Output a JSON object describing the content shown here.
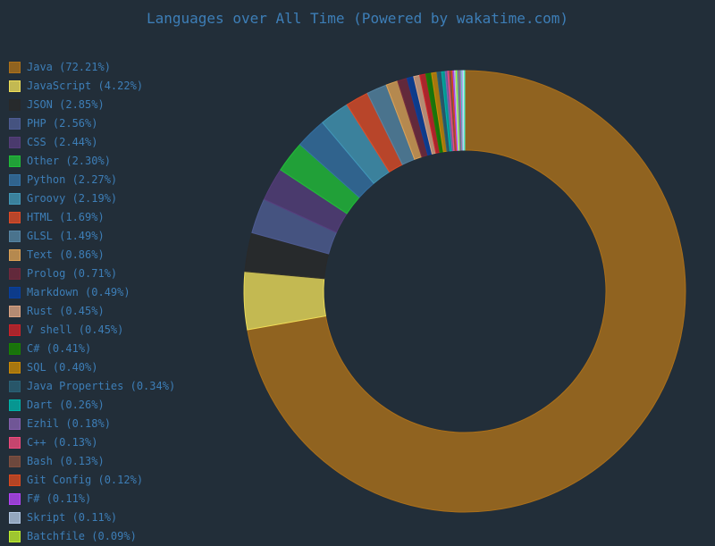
{
  "title": "Languages over All Time (Powered by wakatime.com)",
  "colors": {
    "background": "#222e39",
    "text": "#3d7eb7"
  },
  "chart_data": {
    "type": "pie",
    "donut": true,
    "start_angle_deg": 0,
    "direction": "clockwise",
    "start_position": "top",
    "legend_position": "left",
    "center": {
      "x": 520,
      "y": 326
    },
    "outer_radius": 247,
    "inner_radius": 158,
    "fill_opacity": 0.78,
    "series": [
      {
        "name": "Java",
        "label": "Java (72.21%)",
        "value": 72.21,
        "color": "#b07219"
      },
      {
        "name": "JavaScript",
        "label": "JavaScript (4.22%)",
        "value": 4.22,
        "color": "#f1e05a"
      },
      {
        "name": "JSON",
        "label": "JSON (2.85%)",
        "value": 2.85,
        "color": "#292929"
      },
      {
        "name": "PHP",
        "label": "PHP (2.56%)",
        "value": 2.56,
        "color": "#4F5D95"
      },
      {
        "name": "CSS",
        "label": "CSS (2.44%)",
        "value": 2.44,
        "color": "#563d7c"
      },
      {
        "name": "Other",
        "label": "Other (2.30%)",
        "value": 2.3,
        "color": "#21c038"
      },
      {
        "name": "Python",
        "label": "Python (2.27%)",
        "value": 2.27,
        "color": "#3572A5"
      },
      {
        "name": "Groovy",
        "label": "Groovy (2.19%)",
        "value": 2.19,
        "color": "#4298b8"
      },
      {
        "name": "HTML",
        "label": "HTML (1.69%)",
        "value": 1.69,
        "color": "#e34c26"
      },
      {
        "name": "GLSL",
        "label": "GLSL (1.49%)",
        "value": 1.49,
        "color": "#5686a5"
      },
      {
        "name": "Text",
        "label": "Text (0.86%)",
        "value": 0.86,
        "color": "#dfa356"
      },
      {
        "name": "Prolog",
        "label": "Prolog (0.71%)",
        "value": 0.71,
        "color": "#74283c"
      },
      {
        "name": "Markdown",
        "label": "Markdown (0.49%)",
        "value": 0.49,
        "color": "#083fa1"
      },
      {
        "name": "Rust",
        "label": "Rust (0.45%)",
        "value": 0.45,
        "color": "#dea584"
      },
      {
        "name": "V shell",
        "label": "V shell (0.45%)",
        "value": 0.45,
        "color": "#d12229"
      },
      {
        "name": "C#",
        "label": "C# (0.41%)",
        "value": 0.41,
        "color": "#178600"
      },
      {
        "name": "SQL",
        "label": "SQL (0.40%)",
        "value": 0.4,
        "color": "#cd8b04"
      },
      {
        "name": "Java Properties",
        "label": "Java Properties (0.34%)",
        "value": 0.34,
        "color": "#2A6277"
      },
      {
        "name": "Dart",
        "label": "Dart (0.26%)",
        "value": 0.26,
        "color": "#00B4AB"
      },
      {
        "name": "Ezhil",
        "label": "Ezhil (0.18%)",
        "value": 0.18,
        "color": "#8761b1"
      },
      {
        "name": "C++",
        "label": "C++ (0.13%)",
        "value": 0.13,
        "color": "#f34b7d"
      },
      {
        "name": "Bash",
        "label": "Bash (0.13%)",
        "value": 0.13,
        "color": "#83503f"
      },
      {
        "name": "Git Config",
        "label": "Git Config (0.12%)",
        "value": 0.12,
        "color": "#de4a1f"
      },
      {
        "name": "F#",
        "label": "F# (0.11%)",
        "value": 0.11,
        "color": "#b845fc"
      },
      {
        "name": "Skript",
        "label": "Skript (0.11%)",
        "value": 0.11,
        "color": "#b3c9e6"
      },
      {
        "name": "Batchfile",
        "label": "Batchfile (0.09%)",
        "value": 0.09,
        "color": "#C1F12E"
      }
    ],
    "unlabeled_remainder": [
      {
        "value": 0.054,
        "color": "#10c9b5"
      },
      {
        "value": 0.054,
        "color": "#e84393"
      },
      {
        "value": 0.054,
        "color": "#27ae60"
      },
      {
        "value": 0.054,
        "color": "#8e44ad"
      },
      {
        "value": 0.054,
        "color": "#ff5ea8"
      },
      {
        "value": 0.054,
        "color": "#00cec9"
      },
      {
        "value": 0.054,
        "color": "#b2bec3"
      },
      {
        "value": 0.054,
        "color": "#a29bfe"
      },
      {
        "value": 0.054,
        "color": "#e6e9f0"
      },
      {
        "value": 0.054,
        "color": "#55efc4"
      }
    ]
  }
}
